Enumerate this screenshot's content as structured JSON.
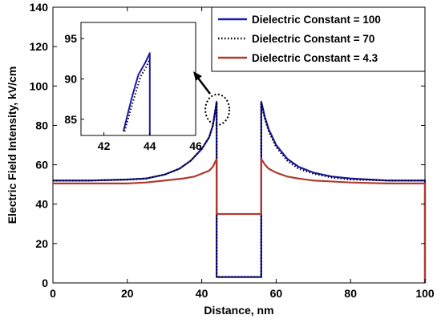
{
  "chart_data": [
    {
      "type": "line",
      "xlabel": "Distance, nm",
      "ylabel": "Electric Field Intensity, kV/cm",
      "xlim": [
        0,
        100
      ],
      "ylim": [
        0,
        140
      ],
      "xticks": [
        "0",
        "20",
        "40",
        "60",
        "80",
        "100"
      ],
      "yticks": [
        "0",
        "20",
        "40",
        "60",
        "80",
        "100",
        "120",
        "140"
      ],
      "grid": false,
      "legend": "top-right",
      "series": [
        {
          "name": "Dielectric Constant = 100",
          "color": "#1a1aa8",
          "style": "solid",
          "x": [
            0,
            10,
            20,
            25,
            30,
            34,
            37,
            40,
            42,
            43,
            44,
            44,
            56,
            56,
            57,
            58,
            60,
            63,
            66,
            70,
            75,
            80,
            90,
            100,
            100
          ],
          "y": [
            52,
            52,
            52.5,
            53,
            55,
            58,
            62,
            68,
            74,
            80,
            92,
            3,
            3,
            92,
            84,
            78,
            70,
            63,
            59,
            56,
            54,
            53,
            52,
            52,
            0
          ]
        },
        {
          "name": "Dielectric Constant = 70",
          "color": "#000000",
          "style": "dotted",
          "x": [
            0,
            10,
            20,
            25,
            30,
            34,
            37,
            40,
            42,
            43,
            44,
            44,
            56,
            56,
            57,
            58,
            60,
            63,
            66,
            70,
            75,
            80,
            90,
            100,
            100
          ],
          "y": [
            52,
            52,
            52.5,
            53,
            55,
            58,
            62,
            68,
            74,
            80,
            91,
            3,
            3,
            91,
            83,
            77,
            69,
            62,
            58,
            55.5,
            53.5,
            52.5,
            52,
            52,
            0
          ]
        },
        {
          "name": "Dielectric Constant = 4.3",
          "color": "#b03a2e",
          "style": "solid",
          "x": [
            0,
            10,
            20,
            25,
            30,
            35,
            38,
            40,
            42,
            43,
            44,
            44,
            56,
            56,
            57,
            58,
            60,
            63,
            66,
            70,
            75,
            80,
            90,
            100,
            100
          ],
          "y": [
            50.5,
            50.5,
            50.5,
            51,
            52,
            53,
            54,
            55.5,
            57,
            59,
            63,
            35,
            35,
            63,
            60,
            58,
            56,
            54,
            53,
            52,
            51.5,
            51,
            50.5,
            50.5,
            0
          ]
        }
      ]
    },
    {
      "type": "line",
      "role": "inset",
      "xlim": [
        41,
        46
      ],
      "ylim": [
        83,
        97
      ],
      "xticks": [
        "42",
        "44",
        "46"
      ],
      "yticks": [
        "85",
        "90",
        "95"
      ],
      "series": [
        {
          "name": "Dielectric Constant = 100",
          "color": "#1a1aa8",
          "style": "solid",
          "x": [
            42.85,
            43.2,
            43.5,
            43.8,
            44,
            44
          ],
          "y": [
            83.5,
            87.5,
            90.5,
            92,
            93.2,
            83
          ]
        },
        {
          "name": "Dielectric Constant = 70",
          "color": "#000000",
          "style": "dotted",
          "x": [
            42.9,
            43.3,
            43.6,
            43.85,
            44
          ],
          "y": [
            83.5,
            87.5,
            90.3,
            91.5,
            92.5
          ]
        }
      ]
    }
  ]
}
